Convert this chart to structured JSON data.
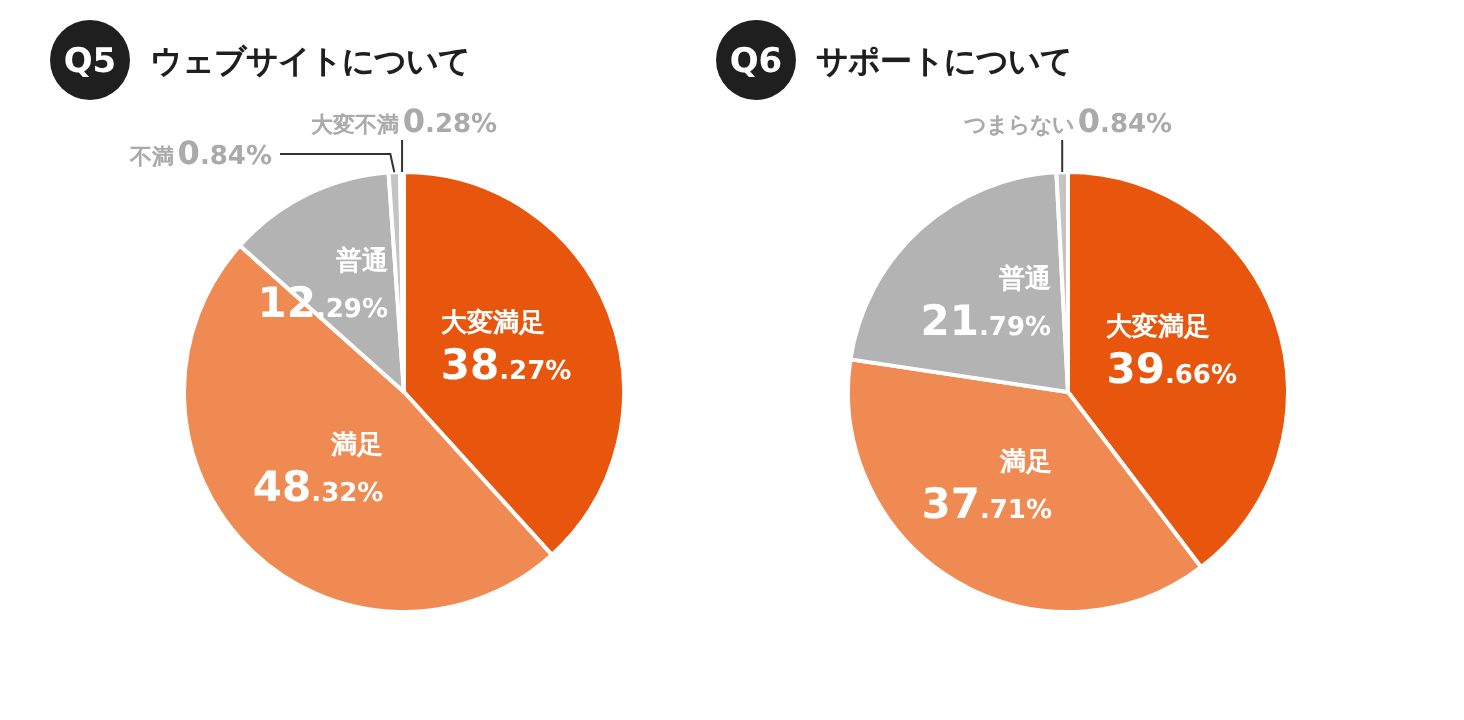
{
  "chart_data": [
    {
      "type": "pie",
      "title": "Q5",
      "subtitle": "ウェブサイトについて",
      "categories": [
        "大変満足",
        "満足",
        "普通",
        "不満",
        "大変不満"
      ],
      "values": [
        38.27,
        48.32,
        12.29,
        0.84,
        0.28
      ],
      "value_labels": [
        "38.27%",
        "48.32%",
        "12.29%",
        "0.84%",
        "0.28%"
      ],
      "colors": [
        "#e8560e",
        "#ef8a52",
        "#b3b3b3",
        "#c4c4c4",
        "#c4c4c4"
      ]
    },
    {
      "type": "pie",
      "title": "Q6",
      "subtitle": "サポートについて",
      "categories": [
        "大変満足",
        "満足",
        "普通",
        "つまらない"
      ],
      "values": [
        39.66,
        37.71,
        21.79,
        0.84
      ],
      "value_labels": [
        "39.66%",
        "37.71%",
        "21.79%",
        "0.84%"
      ],
      "colors": [
        "#e8560e",
        "#ef8a52",
        "#b3b3b3",
        "#c4c4c4"
      ]
    }
  ]
}
